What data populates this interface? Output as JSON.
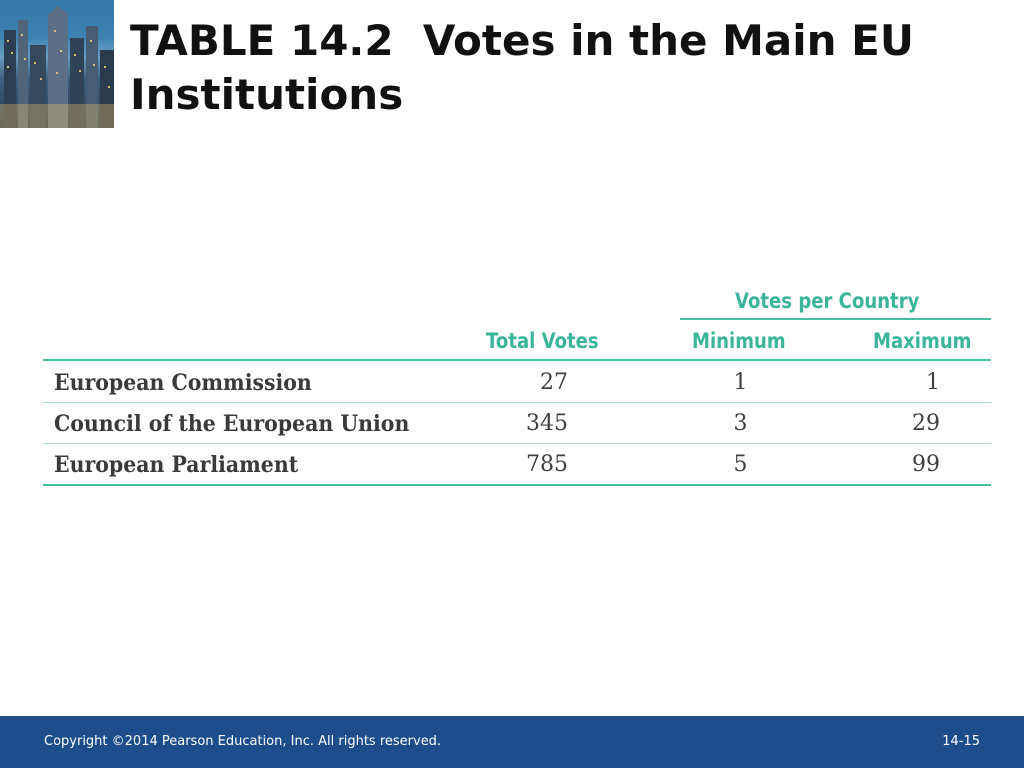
{
  "slide": {
    "title": "TABLE 14.2  Votes in the Main EU Institutions"
  },
  "table": {
    "group_header": "Votes per Country",
    "columns": [
      "Total Votes",
      "Minimum",
      "Maximum"
    ],
    "rows": [
      {
        "label": "European Commission",
        "total": "27",
        "minimum": "1",
        "maximum": "1"
      },
      {
        "label": "Council of the European Union",
        "total": "345",
        "minimum": "3",
        "maximum": "29"
      },
      {
        "label": "European Parliament",
        "total": "785",
        "minimum": "5",
        "maximum": "99"
      }
    ]
  },
  "footer": {
    "copyright": "Copyright ©2014 Pearson Education, Inc. All rights reserved.",
    "page_number": "14-15"
  },
  "colors": {
    "header_accent": "#3bb59a",
    "footer_bar": "#1e4d8c",
    "title": "#111111"
  }
}
